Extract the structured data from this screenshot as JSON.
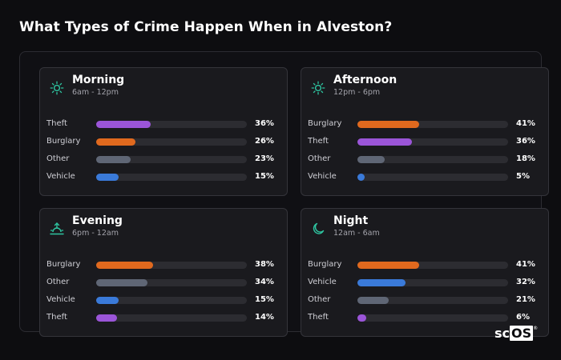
{
  "title": "What Types of Crime Happen When in Alveston?",
  "brand": {
    "prefix": "sc",
    "highlight": "OS",
    "mark": "®"
  },
  "colors": {
    "Theft": "#9b55d8",
    "Burglary": "#e0691e",
    "Other": "#5f6675",
    "Vehicle": "#3a7ad9",
    "icon": "#2ec4a0"
  },
  "chart_data": [
    {
      "type": "bar",
      "title": "Morning",
      "subtitle": "6am - 12pm",
      "icon": "sun-icon",
      "categories": [
        "Theft",
        "Burglary",
        "Other",
        "Vehicle"
      ],
      "values": [
        36,
        26,
        23,
        15
      ],
      "labels": [
        "36%",
        "26%",
        "23%",
        "15%"
      ],
      "xlim": [
        0,
        100
      ]
    },
    {
      "type": "bar",
      "title": "Afternoon",
      "subtitle": "12pm - 6pm",
      "icon": "sun-icon",
      "categories": [
        "Burglary",
        "Theft",
        "Other",
        "Vehicle"
      ],
      "values": [
        41,
        36,
        18,
        5
      ],
      "labels": [
        "41%",
        "36%",
        "18%",
        "5%"
      ],
      "xlim": [
        0,
        100
      ]
    },
    {
      "type": "bar",
      "title": "Evening",
      "subtitle": "6pm - 12am",
      "icon": "sunset-icon",
      "categories": [
        "Burglary",
        "Other",
        "Vehicle",
        "Theft"
      ],
      "values": [
        38,
        34,
        15,
        14
      ],
      "labels": [
        "38%",
        "34%",
        "15%",
        "14%"
      ],
      "xlim": [
        0,
        100
      ]
    },
    {
      "type": "bar",
      "title": "Night",
      "subtitle": "12am - 6am",
      "icon": "moon-icon",
      "categories": [
        "Burglary",
        "Vehicle",
        "Other",
        "Theft"
      ],
      "values": [
        41,
        32,
        21,
        6
      ],
      "labels": [
        "41%",
        "32%",
        "21%",
        "6%"
      ],
      "xlim": [
        0,
        100
      ]
    }
  ]
}
